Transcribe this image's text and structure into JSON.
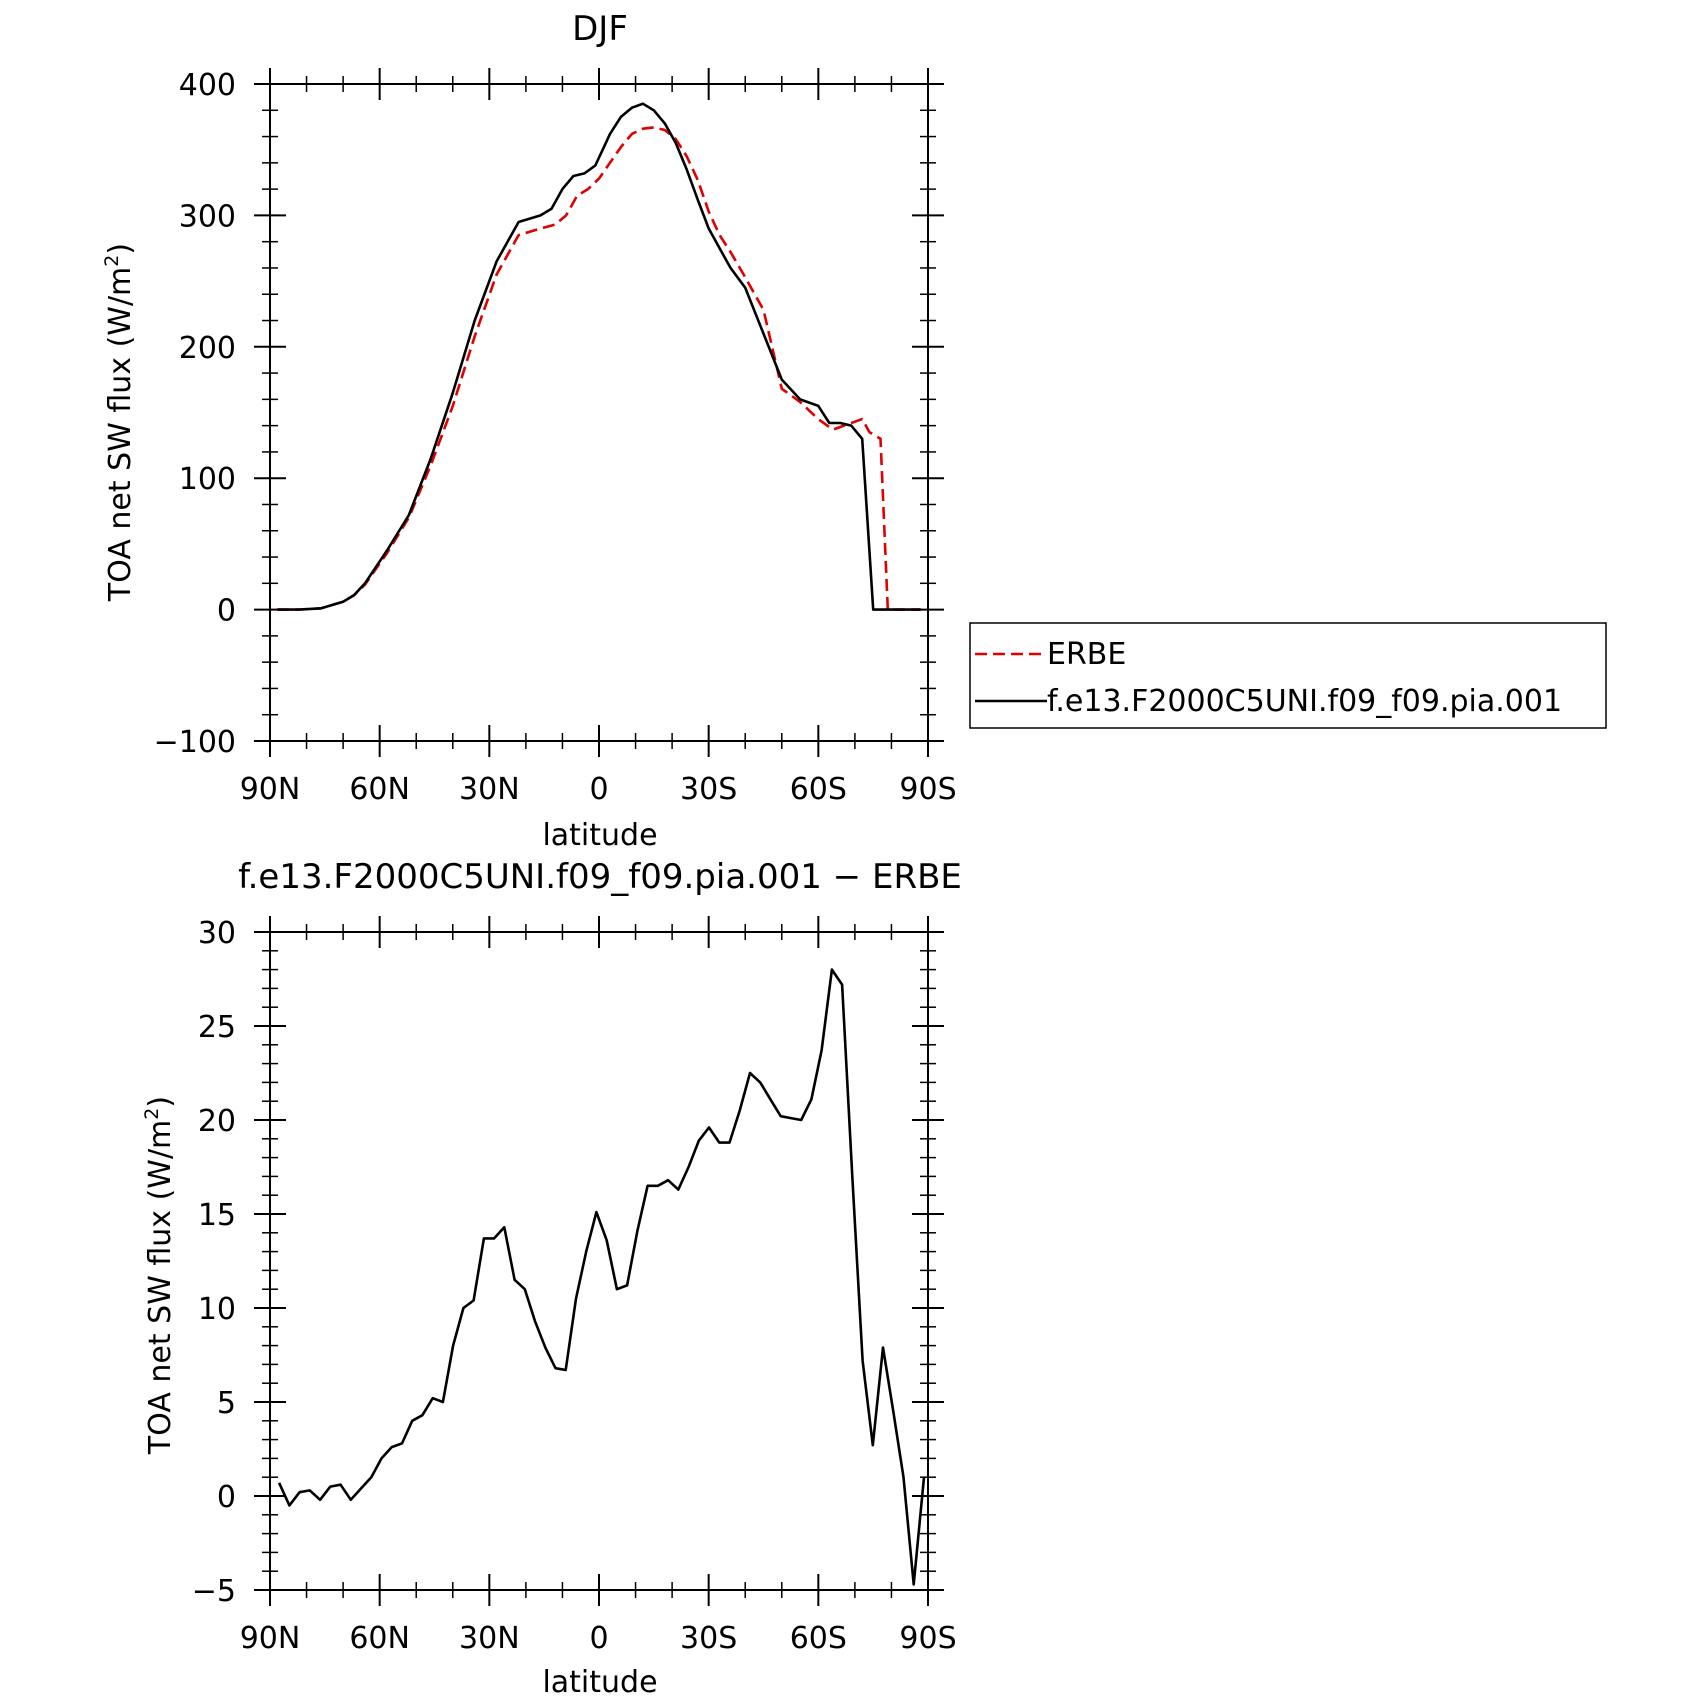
{
  "chart_data": [
    {
      "type": "line",
      "title": "DJF",
      "xlabel": "latitude",
      "ylabel": "TOA net SW flux (W/m",
      "ylabel_sup": "2",
      "ylabel_close": ")",
      "xlim": [
        90,
        -90
      ],
      "ylim": [
        -100,
        400
      ],
      "xticks": [
        {
          "value": 90,
          "label": "90N"
        },
        {
          "value": 60,
          "label": "60N"
        },
        {
          "value": 30,
          "label": "30N"
        },
        {
          "value": 0,
          "label": "0"
        },
        {
          "value": -30,
          "label": "30S"
        },
        {
          "value": -60,
          "label": "60S"
        },
        {
          "value": -90,
          "label": "90S"
        }
      ],
      "yticks": [
        {
          "value": 400,
          "label": "400"
        },
        {
          "value": 300,
          "label": "300"
        },
        {
          "value": 200,
          "label": "200"
        },
        {
          "value": 100,
          "label": "100"
        },
        {
          "value": 0,
          "label": "0"
        },
        {
          "value": -100,
          "label": "−100"
        }
      ],
      "legend": {
        "placement": "right",
        "entries": [
          "ERBE",
          "f.e13.F2000C5UNI.f09_f09.pia.001"
        ]
      },
      "series": [
        {
          "name": "ERBE",
          "color": "#e00000",
          "dash": true,
          "x": [
            88,
            82,
            76,
            70,
            67,
            64,
            58,
            52,
            46,
            40,
            34,
            28,
            22,
            16,
            12,
            9,
            6,
            3,
            0,
            -3,
            -6,
            -9,
            -12,
            -15,
            -18,
            -21,
            -24,
            -27,
            -30,
            -33,
            -36,
            -40,
            -45,
            -50,
            -55,
            -60,
            -64,
            -67,
            -70,
            -72,
            -74,
            -77,
            -79,
            -81,
            -84,
            -86,
            -88
          ],
          "y": [
            0,
            0,
            1,
            6,
            11,
            19,
            43,
            70,
            110,
            155,
            208,
            255,
            285,
            290,
            293,
            300,
            315,
            320,
            328,
            340,
            352,
            362,
            366,
            367,
            365,
            358,
            345,
            327,
            303,
            285,
            272,
            253,
            228,
            168,
            158,
            145,
            137,
            140,
            143,
            145,
            135,
            130,
            0,
            0,
            0,
            0,
            0
          ]
        },
        {
          "name": "f.e13.F2000C5UNI.f09_f09.pia.001",
          "color": "#000000",
          "dash": false,
          "x": [
            88,
            82,
            76,
            70,
            67,
            64,
            58,
            52,
            46,
            40,
            34,
            28,
            22,
            16,
            13,
            10,
            7,
            4,
            1,
            -1,
            -3,
            -6,
            -9,
            -12,
            -15,
            -18,
            -21,
            -24,
            -27,
            -30,
            -33,
            -36,
            -40,
            -45,
            -50,
            -55,
            -60,
            -63,
            -66,
            -69,
            -72,
            -75,
            -78,
            -81,
            -84,
            -87,
            -88
          ],
          "y": [
            0,
            0,
            1,
            6,
            11,
            20,
            45,
            72,
            115,
            165,
            220,
            265,
            295,
            300,
            305,
            320,
            330,
            332,
            338,
            350,
            362,
            375,
            382,
            385,
            380,
            370,
            355,
            335,
            312,
            290,
            275,
            260,
            245,
            210,
            175,
            160,
            155,
            142,
            142,
            140,
            130,
            0,
            0,
            0,
            0,
            0,
            0
          ]
        }
      ]
    },
    {
      "type": "line",
      "title": "f.e13.F2000C5UNI.f09_f09.pia.001 − ERBE",
      "xlabel": "latitude",
      "ylabel": "TOA net SW flux (W/m",
      "ylabel_sup": "2",
      "ylabel_close": ")",
      "xlim": [
        90,
        -90
      ],
      "ylim": [
        -5,
        30
      ],
      "xticks": [
        {
          "value": 90,
          "label": "90N"
        },
        {
          "value": 60,
          "label": "60N"
        },
        {
          "value": 30,
          "label": "30N"
        },
        {
          "value": 0,
          "label": "0"
        },
        {
          "value": -30,
          "label": "30S"
        },
        {
          "value": -60,
          "label": "60S"
        },
        {
          "value": -90,
          "label": "90S"
        }
      ],
      "yticks": [
        {
          "value": 30,
          "label": "30"
        },
        {
          "value": 25,
          "label": "25"
        },
        {
          "value": 20,
          "label": "20"
        },
        {
          "value": 15,
          "label": "15"
        },
        {
          "value": 10,
          "label": "10"
        },
        {
          "value": 5,
          "label": "5"
        },
        {
          "value": 0,
          "label": "0"
        },
        {
          "value": -5,
          "label": "−5"
        }
      ],
      "series": [
        {
          "color": "#000000",
          "dash": false,
          "x": [
            87.5,
            84.7,
            81.9,
            79.1,
            76.3,
            73.5,
            70.7,
            67.9,
            65.1,
            62.3,
            59.5,
            56.7,
            53.9,
            51.1,
            48.3,
            45.5,
            42.7,
            39.9,
            37.1,
            34.3,
            31.5,
            28.7,
            25.9,
            23.1,
            20.3,
            17.5,
            14.7,
            11.9,
            9.1,
            6.3,
            3.5,
            0.7,
            -2.1,
            -4.9,
            -7.7,
            -10.5,
            -13.3,
            -16.1,
            -18.9,
            -21.7,
            -24.5,
            -27.3,
            -30.1,
            -32.9,
            -35.7,
            -38.5,
            -41.3,
            -44.1,
            -46.9,
            -49.7,
            -52.5,
            -55.3,
            -58.1,
            -60.9,
            -63.7,
            -66.5,
            -69.3,
            -72.1,
            -74.9,
            -77.7,
            -80.5,
            -83.3,
            -86.1,
            -88.9
          ],
          "y": [
            0.7,
            -0.5,
            0.2,
            0.3,
            -0.2,
            0.5,
            0.6,
            -0.2,
            0.4,
            1.0,
            2.0,
            2.6,
            2.8,
            4.0,
            4.3,
            5.2,
            5.0,
            8.0,
            10.0,
            10.4,
            13.7,
            13.7,
            14.3,
            11.5,
            11.0,
            9.3,
            7.9,
            6.8,
            6.7,
            10.5,
            13.0,
            15.1,
            13.6,
            11.0,
            11.2,
            14.1,
            16.5,
            16.5,
            16.8,
            16.3,
            17.5,
            18.9,
            19.6,
            18.8,
            18.8,
            20.5,
            22.5,
            22.0,
            21.1,
            20.2,
            20.1,
            20.0,
            21.1,
            23.7,
            28.0,
            27.2,
            17.0,
            7.2,
            2.7,
            7.9,
            4.5,
            1.0,
            -4.7,
            1.0
          ]
        }
      ]
    }
  ]
}
